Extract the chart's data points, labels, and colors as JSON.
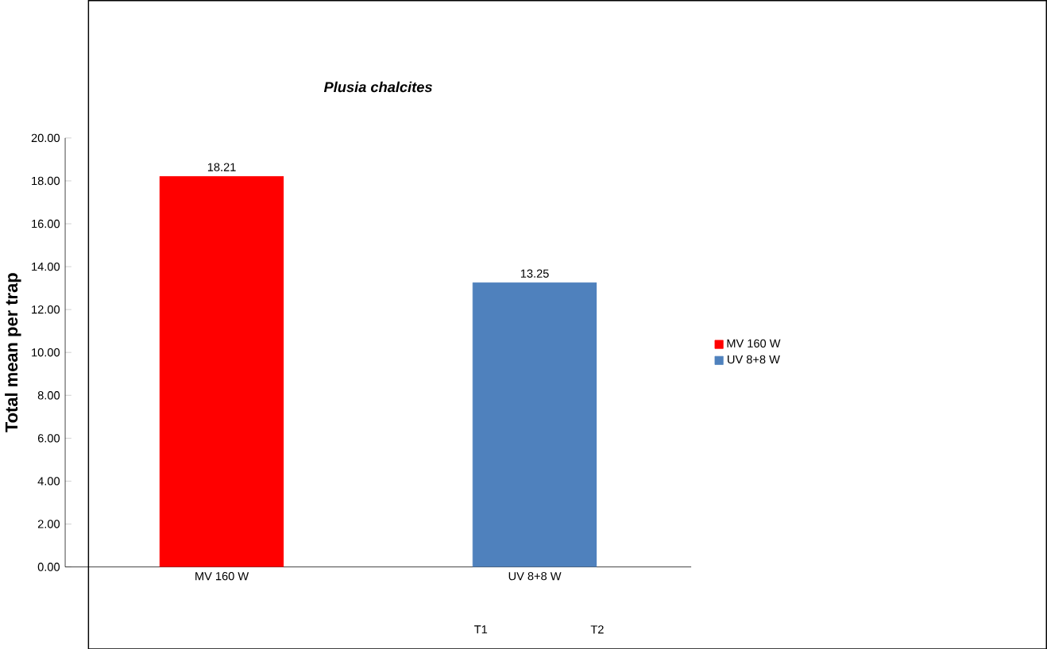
{
  "chart_data": {
    "type": "bar",
    "title": "Plusia chalcites",
    "ylabel": "Total mean per trap",
    "categories": [
      "MV 160 W",
      "UV 8+8 W"
    ],
    "series": [
      {
        "name": "MV 160 W",
        "color": "#ff0000",
        "values": [
          18.21,
          null
        ]
      },
      {
        "name": "UV 8+8 W",
        "color": "#4f81bd",
        "values": [
          null,
          13.25
        ]
      }
    ],
    "ylim": [
      0,
      20
    ],
    "yticks": [
      {
        "value": 0,
        "label": "0.00"
      },
      {
        "value": 2,
        "label": "2.00"
      },
      {
        "value": 4,
        "label": "4.00"
      },
      {
        "value": 6,
        "label": "6.00"
      },
      {
        "value": 8,
        "label": "8.00"
      },
      {
        "value": 10,
        "label": "10.00"
      },
      {
        "value": 12,
        "label": "12.00"
      },
      {
        "value": 14,
        "label": "14.00"
      },
      {
        "value": 16,
        "label": "16.00"
      },
      {
        "value": 18,
        "label": "18.00"
      },
      {
        "value": 20,
        "label": "20.00"
      }
    ],
    "data_labels": true,
    "legend": "right",
    "grid": false,
    "annotations": [
      "T1",
      "T2"
    ]
  }
}
